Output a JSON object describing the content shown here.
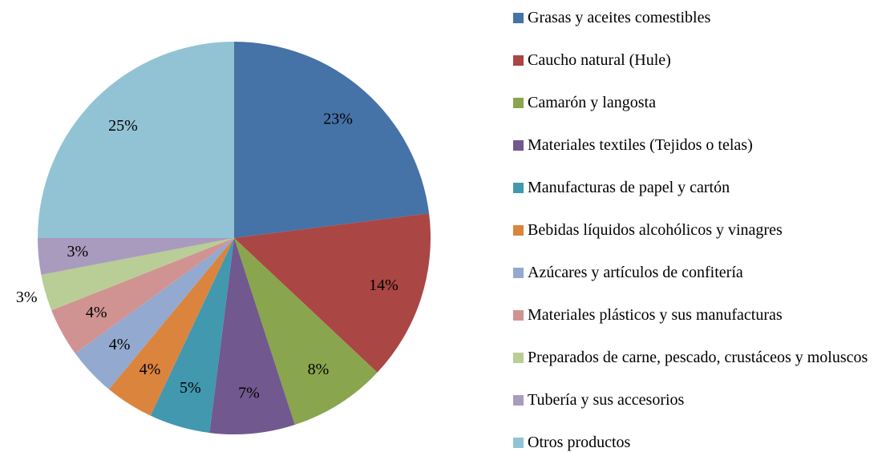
{
  "chart_data": {
    "type": "pie",
    "categories": [
      "Grasas y aceites comestibles",
      "Caucho natural (Hule)",
      "Camarón y langosta",
      "Materiales textiles (Tejidos o telas)",
      "Manufacturas de papel y cartón",
      "Bebidas líquidos alcohólicos y vinagres",
      "Azúcares y artículos de confitería",
      "Materiales plásticos y sus manufacturas",
      "Preparados de carne, pescado, crustáceos y moluscos",
      "Tubería y sus accesorios",
      "Otros productos"
    ],
    "values": [
      23,
      14,
      8,
      7,
      5,
      4,
      4,
      4,
      3,
      3,
      25
    ],
    "value_labels": [
      "23%",
      "14%",
      "8%",
      "7%",
      "5%",
      "4%",
      "4%",
      "4%",
      "3%",
      "3%",
      "25%"
    ],
    "colors": [
      "#4572A7",
      "#AA4643",
      "#89A54E",
      "#71588F",
      "#4198AF",
      "#DB843D",
      "#93A9CF",
      "#D19392",
      "#B9CD96",
      "#A99BBD",
      "#92C3D4"
    ],
    "legend": "right"
  }
}
